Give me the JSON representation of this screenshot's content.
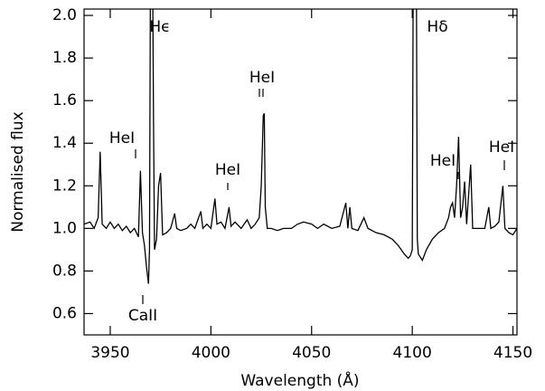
{
  "chart_data": {
    "type": "line",
    "x_label": "Wavelength (Å)",
    "y_label": "Normalised flux",
    "xlim": [
      3937,
      4152
    ],
    "ylim": [
      0.5,
      2.03
    ],
    "xticks": [
      3950,
      4000,
      4050,
      4100,
      4150
    ],
    "yticks": [
      {
        "value": 0.6,
        "label": "0.6"
      },
      {
        "value": 0.8,
        "label": "0.8"
      },
      {
        "value": 1,
        "label": "1.0"
      },
      {
        "value": 1.2,
        "label": "1.2"
      },
      {
        "value": 1.4,
        "label": "1.4"
      },
      {
        "value": 1.6,
        "label": "1.6"
      },
      {
        "value": 1.8,
        "label": "1.8"
      },
      {
        "value": 2,
        "label": "2.0"
      }
    ],
    "annotations": [
      "Hϵ",
      "Hδ",
      "HeI",
      "HeI",
      "HeI",
      "CaII",
      "HeI",
      "HeI"
    ],
    "series": [
      {
        "color": "#000000",
        "x": [
          3937,
          3940,
          3942,
          3944,
          3945,
          3946,
          3948,
          3950,
          3952,
          3954,
          3956,
          3958,
          3960,
          3962,
          3964,
          3965,
          3966,
          3967,
          3968,
          3969,
          3969.5,
          3970,
          3971,
          3971.5,
          3972,
          3973,
          3974,
          3975,
          3976,
          3978,
          3980,
          3982,
          3983,
          3985,
          3988,
          3990,
          3992,
          3995,
          3996,
          3998,
          4000,
          4002,
          4003,
          4005,
          4007,
          4009,
          4010,
          4012,
          4015,
          4018,
          4020,
          4022,
          4024,
          4025,
          4026,
          4026.5,
          4027,
          4028,
          4030,
          4033,
          4036,
          4040,
          4043,
          4046,
          4050,
          4053,
          4056,
          4060,
          4064,
          4067,
          4068,
          4069,
          4070,
          4073,
          4076,
          4078,
          4082,
          4086,
          4090,
          4093,
          4096,
          4098,
          4099,
          4100,
          4100.5,
          4102,
          4102.5,
          4103,
          4105,
          4107,
          4110,
          4113,
          4116,
          4118,
          4119,
          4120,
          4121,
          4122,
          4123,
          4124,
          4125,
          4126,
          4127,
          4129,
          4130,
          4132,
          4134,
          4136,
          4138,
          4139,
          4141,
          4143,
          4145,
          4146,
          4148,
          4150,
          4152
        ],
        "values": [
          1.02,
          1.03,
          1.0,
          1.05,
          1.36,
          1.02,
          1.0,
          1.03,
          1.0,
          1.02,
          0.99,
          1.01,
          0.98,
          1.0,
          0.96,
          1.27,
          0.98,
          0.92,
          0.82,
          0.74,
          0.9,
          2.3,
          2.3,
          1.5,
          0.9,
          0.95,
          1.2,
          1.26,
          0.97,
          0.98,
          1.0,
          1.07,
          1.0,
          0.99,
          1.0,
          1.02,
          1.0,
          1.08,
          1.0,
          1.02,
          1.0,
          1.14,
          1.02,
          1.03,
          1.0,
          1.1,
          1.01,
          1.03,
          1.0,
          1.04,
          1.0,
          1.02,
          1.05,
          1.2,
          1.53,
          1.54,
          1.1,
          1.0,
          1.0,
          0.99,
          1.0,
          1.0,
          1.02,
          1.03,
          1.02,
          1.0,
          1.02,
          1.0,
          1.01,
          1.12,
          1.0,
          1.1,
          1.0,
          0.99,
          1.05,
          1.0,
          0.98,
          0.97,
          0.95,
          0.92,
          0.88,
          0.86,
          0.87,
          0.9,
          2.3,
          2.3,
          0.95,
          0.88,
          0.85,
          0.9,
          0.95,
          0.98,
          1.0,
          1.05,
          1.1,
          1.12,
          1.05,
          1.2,
          1.43,
          1.05,
          1.1,
          1.22,
          1.02,
          1.3,
          1.0,
          1.0,
          1.0,
          1.0,
          1.1,
          1.0,
          1.01,
          1.03,
          1.2,
          1.0,
          0.98,
          0.97,
          1.0
        ]
      }
    ]
  }
}
